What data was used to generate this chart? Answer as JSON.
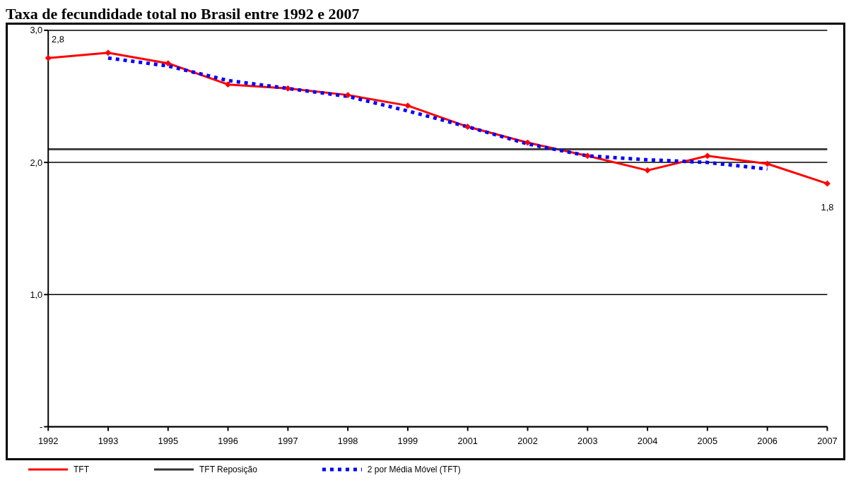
{
  "chart_data": {
    "type": "line",
    "title": "Taxa de fecundidade total no Brasil entre 1992 e 2007",
    "categories": [
      "1992",
      "1993",
      "1995",
      "1996",
      "1997",
      "1998",
      "1999",
      "2001",
      "2002",
      "2003",
      "2004",
      "2005",
      "2006",
      "2007"
    ],
    "series": [
      {
        "name": "TFT",
        "color": "#ff0000",
        "marker": "diamond",
        "line_style": "solid",
        "values": [
          2.79,
          2.83,
          2.75,
          2.59,
          2.56,
          2.51,
          2.43,
          2.27,
          2.15,
          2.05,
          1.94,
          2.05,
          1.99,
          1.84
        ],
        "value_labels": [
          "2,8",
          null,
          null,
          null,
          null,
          null,
          null,
          null,
          null,
          null,
          null,
          null,
          null,
          "1,8"
        ]
      },
      {
        "name": "TFT Reposição",
        "color": "#333333",
        "marker": "none",
        "line_style": "solid",
        "values": [
          2.1,
          2.1,
          2.1,
          2.1,
          2.1,
          2.1,
          2.1,
          2.1,
          2.1,
          2.1,
          2.1,
          2.1,
          2.1,
          2.1
        ]
      },
      {
        "name": "2 por Média Móvel (TFT)",
        "color": "#0000ff",
        "marker": "none",
        "line_style": "dotted",
        "values": [
          null,
          2.79,
          2.73,
          2.62,
          2.56,
          2.5,
          2.39,
          2.27,
          2.14,
          2.05,
          2.02,
          2.0,
          1.95,
          null
        ]
      }
    ],
    "ylim": [
      0,
      3
    ],
    "yticks": [
      {
        "value": 0,
        "label": "-"
      },
      {
        "value": 1,
        "label": "1,0"
      },
      {
        "value": 2,
        "label": "2,0"
      },
      {
        "value": 3,
        "label": "3,0"
      }
    ],
    "grid": "y",
    "legend": "bottom"
  }
}
